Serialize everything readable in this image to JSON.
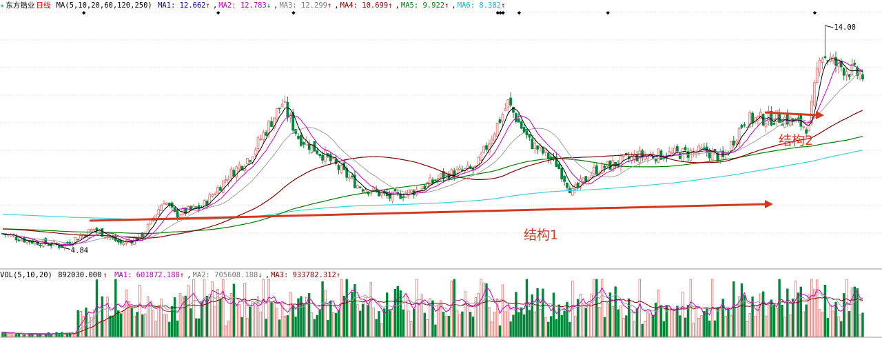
{
  "stock_name": "东方锆业",
  "period": "日线",
  "price_legend": {
    "ma_params": "MA(5,10,20,60,120,250)",
    "items": [
      {
        "label": "MA1:",
        "value": "12.662",
        "arrow": "↑",
        "color": "#0000c8"
      },
      {
        "label": "MA2:",
        "value": "12.783",
        "arrow": "↓",
        "color": "#c800c8"
      },
      {
        "label": "MA3:",
        "value": "12.299",
        "arrow": "↑",
        "color": "#7a7a7a"
      },
      {
        "label": "MA4:",
        "value": "10.699",
        "arrow": "↑",
        "color": "#8b0000"
      },
      {
        "label": "MA5:",
        "value": "9.922",
        "arrow": "↑",
        "color": "#008000"
      },
      {
        "label": "MA6:",
        "value": "8.382",
        "arrow": "↑",
        "color": "#20b2c8"
      }
    ]
  },
  "vol_legend": {
    "params": "VOL(5,10,20)",
    "value": "892030.000",
    "arrow": "↑",
    "items": [
      {
        "label": "MA1:",
        "value": "601872.188",
        "arrow": "↑",
        "color": "#c800c8"
      },
      {
        "label": "MA2:",
        "value": "705608.188",
        "arrow": "↓",
        "color": "#7a7a7a"
      },
      {
        "label": "MA3:",
        "value": "933782.312",
        "arrow": "↑",
        "color": "#8b0000"
      }
    ]
  },
  "annotations": {
    "low_label": "4.84",
    "high_label": "14.00",
    "structure1": "结构1",
    "structure2": "结构2"
  },
  "colors": {
    "up": "#e8706e",
    "down": "#00873a",
    "ma1": "#000000",
    "ma2": "#c800c8",
    "ma3": "#a0a0a0",
    "ma4": "#8b0000",
    "ma5": "#008000",
    "ma6": "#40d0e0",
    "arrow": "#d23a1e",
    "grid": "#c8c8c8",
    "legend_vol": "#c8c8c8"
  },
  "chart_data": {
    "type": "candlestick",
    "price_range": [
      4.0,
      14.6
    ],
    "anchor_points": [
      [
        0,
        5.4
      ],
      [
        10,
        5.1
      ],
      [
        22,
        4.9
      ],
      [
        34,
        5.6
      ],
      [
        44,
        5.0
      ],
      [
        52,
        5.3
      ],
      [
        60,
        6.8
      ],
      [
        64,
        6.2
      ],
      [
        74,
        6.5
      ],
      [
        84,
        7.8
      ],
      [
        92,
        8.6
      ],
      [
        104,
        10.8
      ],
      [
        110,
        9.4
      ],
      [
        120,
        8.6
      ],
      [
        132,
        7.4
      ],
      [
        144,
        6.9
      ],
      [
        154,
        7.2
      ],
      [
        164,
        7.8
      ],
      [
        176,
        8.1
      ],
      [
        188,
        10.8
      ],
      [
        196,
        9.2
      ],
      [
        206,
        8.3
      ],
      [
        212,
        7.1
      ],
      [
        220,
        8.0
      ],
      [
        236,
        8.6
      ],
      [
        250,
        8.7
      ],
      [
        262,
        8.8
      ],
      [
        268,
        8.5
      ],
      [
        276,
        10.1
      ],
      [
        290,
        10.2
      ],
      [
        300,
        9.8
      ],
      [
        304,
        12.9
      ],
      [
        310,
        12.4
      ],
      [
        320,
        11.9
      ]
    ],
    "ma_periods": [
      5,
      10,
      20,
      60,
      120,
      250
    ],
    "latest": {
      "ma1": 12.662,
      "ma2": 12.783,
      "ma3": 12.299,
      "ma4": 10.699,
      "ma5": 9.922,
      "ma6": 8.382
    },
    "low": 4.84,
    "high": 14.0,
    "volume_latest": 892030.0,
    "volume_ma_latest": {
      "ma1": 601872.188,
      "ma2": 705608.188,
      "ma3": 933782.312
    }
  }
}
